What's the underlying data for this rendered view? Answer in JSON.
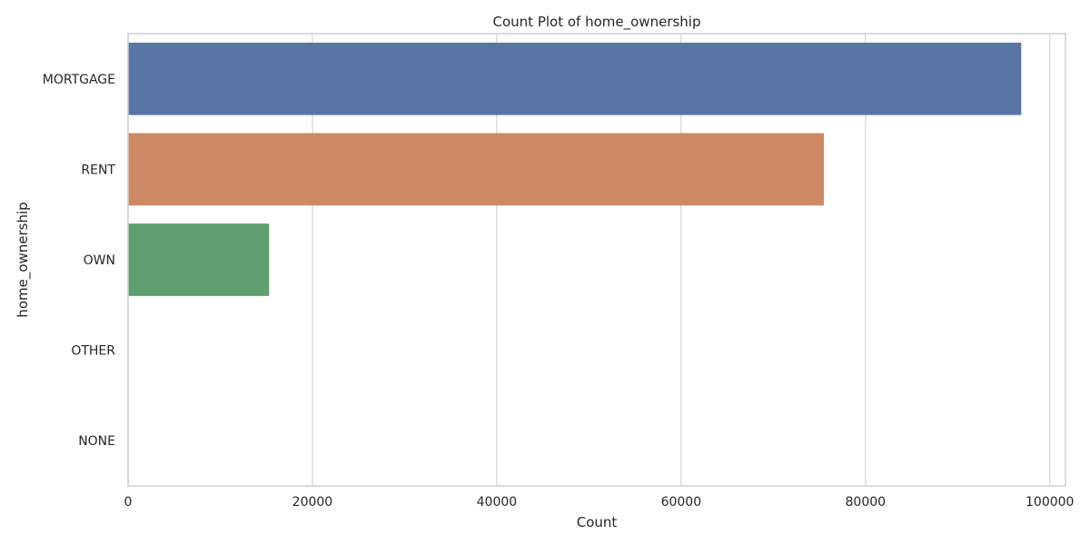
{
  "chart_data": {
    "type": "bar",
    "orientation": "horizontal",
    "title": "Count Plot of home_ownership",
    "xlabel": "Count",
    "ylabel": "home_ownership",
    "categories": [
      "MORTGAGE",
      "RENT",
      "OWN",
      "OTHER",
      "NONE"
    ],
    "values": [
      96900,
      75500,
      15300,
      50,
      10
    ],
    "xlim": [
      0,
      101700
    ],
    "xticks": [
      0,
      20000,
      40000,
      60000,
      80000,
      100000
    ],
    "xtick_labels": [
      "0",
      "20000",
      "40000",
      "60000",
      "80000",
      "100000"
    ],
    "grid": true,
    "colors": [
      "#5875a4",
      "#cc8963",
      "#5f9e6e",
      "#b55d60",
      "#857aab"
    ]
  }
}
